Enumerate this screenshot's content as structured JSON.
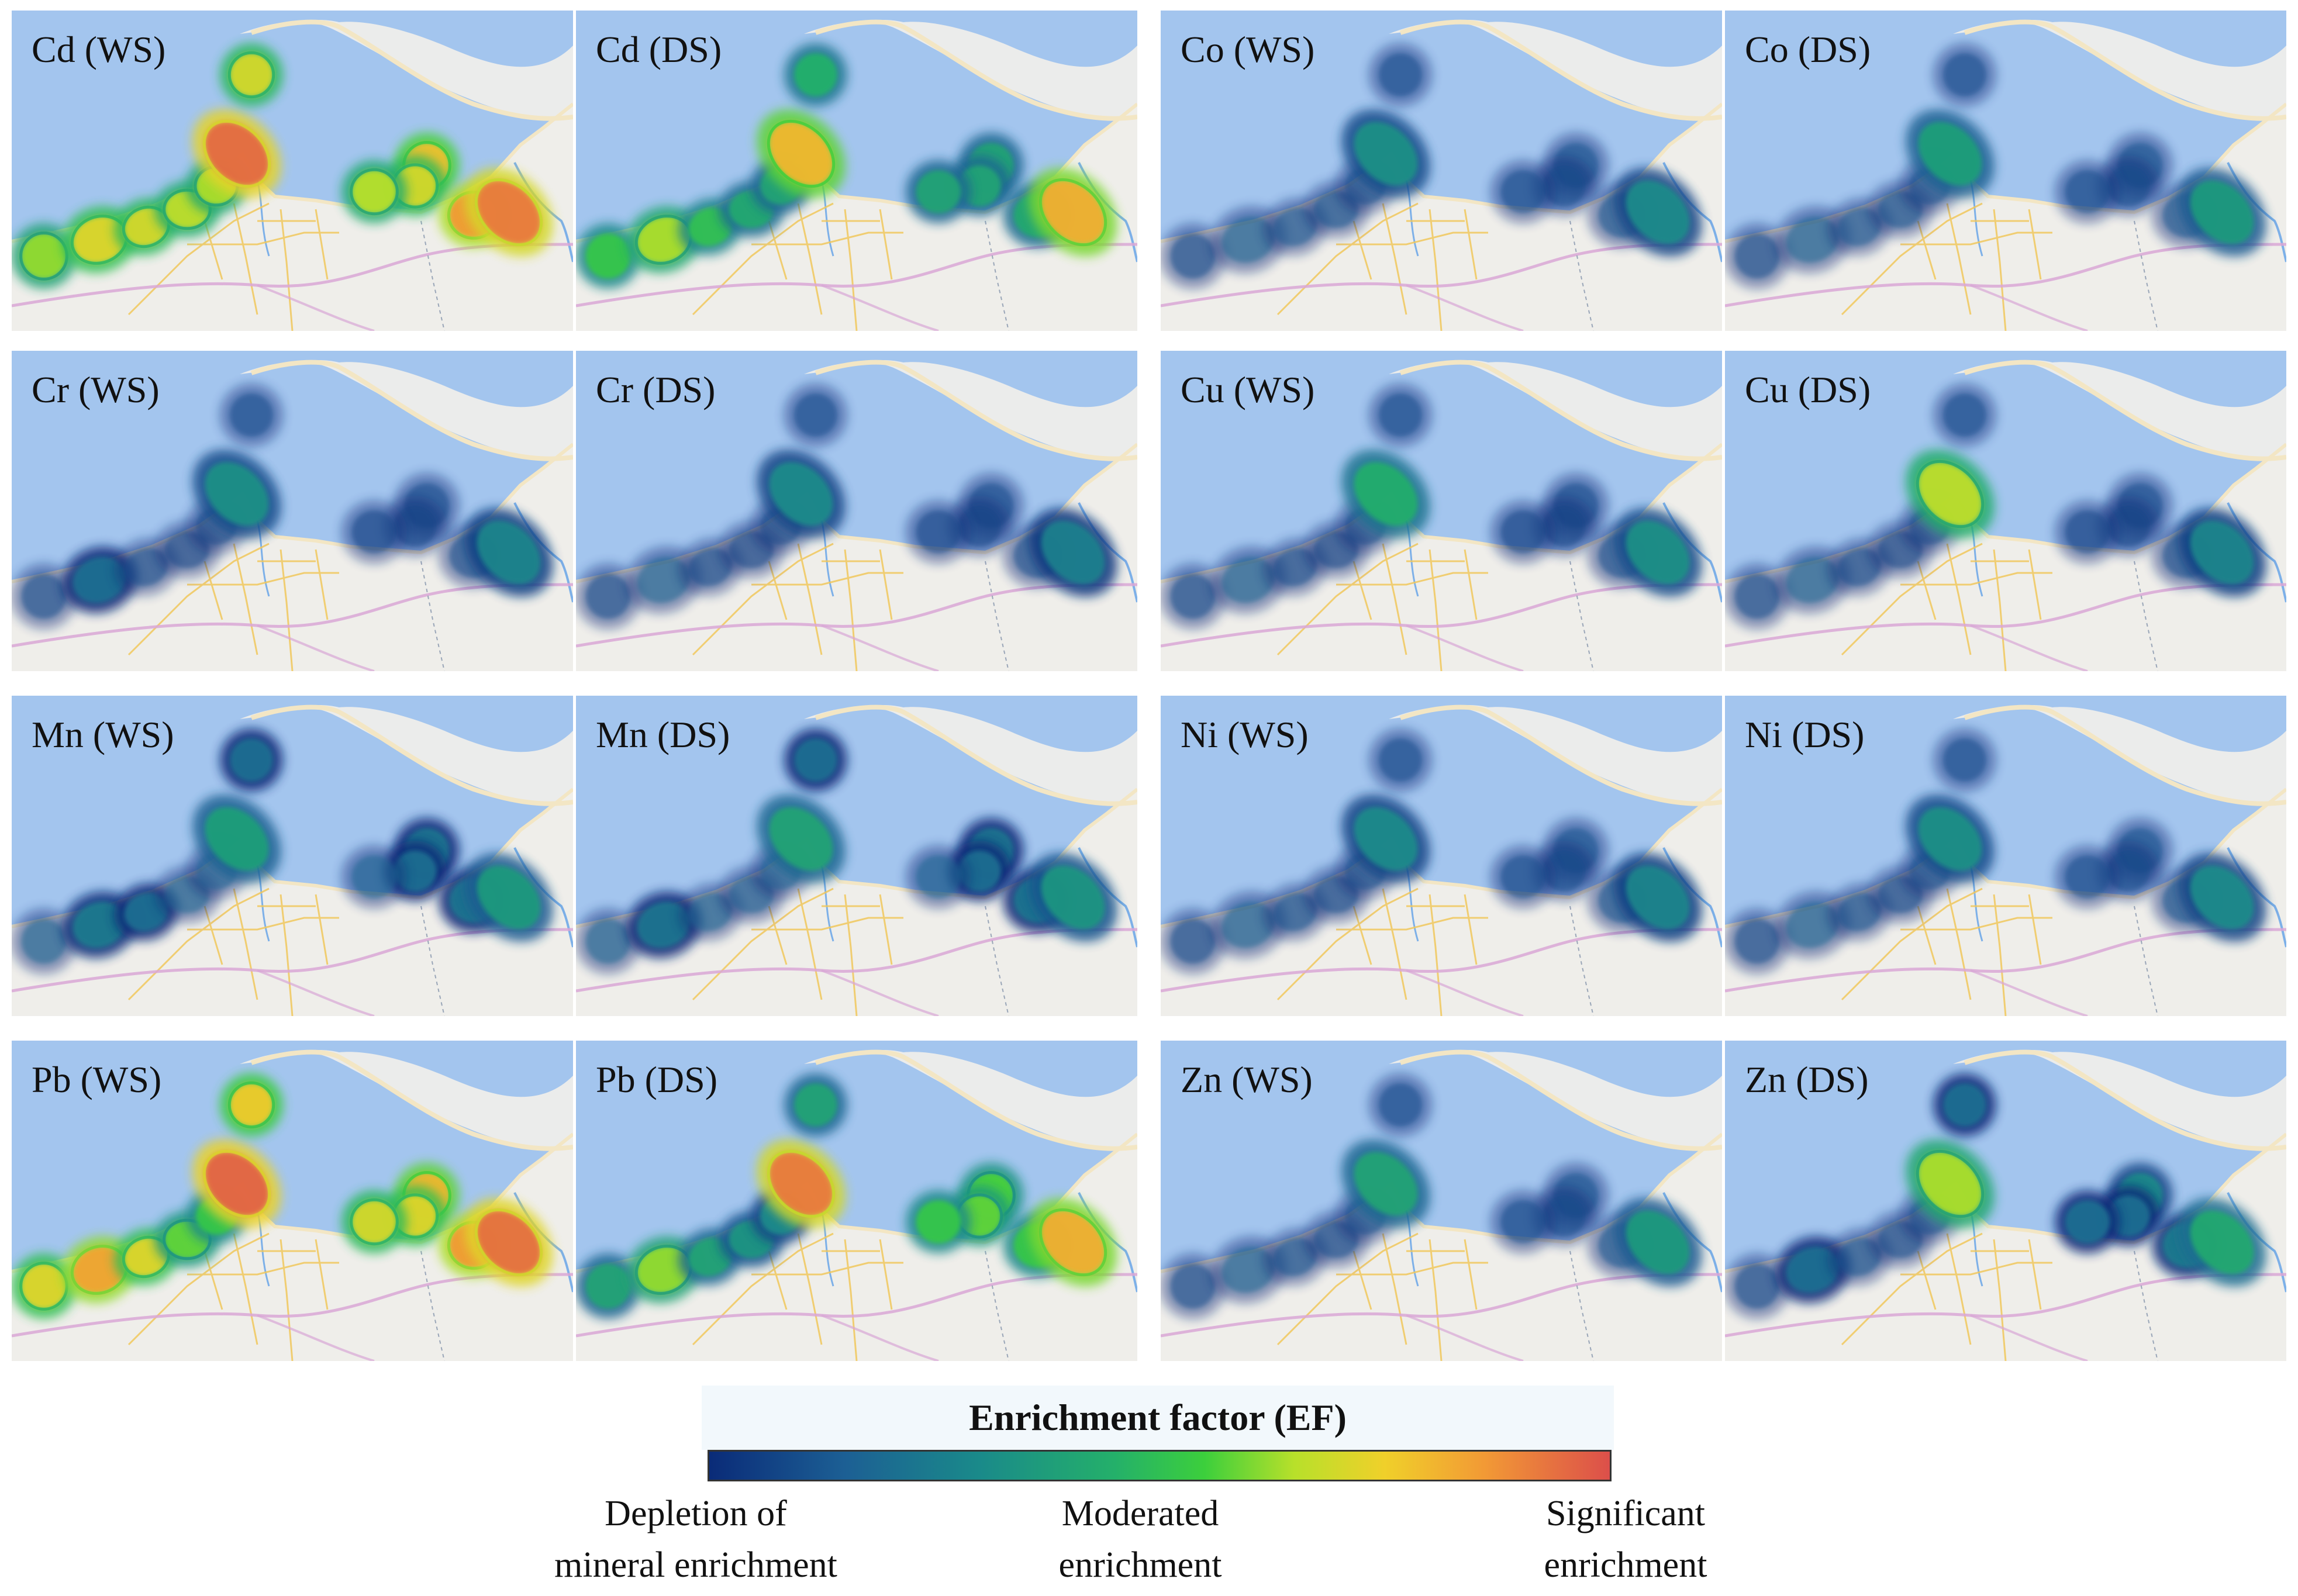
{
  "figure": {
    "panels": [
      {
        "label": "Cd (WS)",
        "element": "Cd",
        "season": "WS",
        "hotspots": [
          0.62,
          0.72,
          0.7,
          0.66,
          0.64,
          0.95,
          0.78,
          0.7,
          0.65,
          0.86,
          0.92,
          0.7
        ]
      },
      {
        "label": "Cd (DS)",
        "element": "Cd",
        "season": "DS",
        "hotspots": [
          0.52,
          0.64,
          0.5,
          0.42,
          0.4,
          0.8,
          0.4,
          0.4,
          0.4,
          0.42,
          0.82,
          0.45
        ]
      },
      {
        "label": "Co (WS)",
        "element": "Co",
        "season": "WS",
        "hotspots": [
          0.1,
          0.18,
          0.14,
          0.12,
          0.1,
          0.32,
          0.12,
          0.1,
          0.1,
          0.12,
          0.3,
          0.1
        ]
      },
      {
        "label": "Co (DS)",
        "element": "Co",
        "season": "DS",
        "hotspots": [
          0.1,
          0.18,
          0.14,
          0.12,
          0.1,
          0.38,
          0.12,
          0.1,
          0.1,
          0.12,
          0.36,
          0.1
        ]
      },
      {
        "label": "Cr (WS)",
        "element": "Cr",
        "season": "WS",
        "hotspots": [
          0.1,
          0.2,
          0.1,
          0.08,
          0.08,
          0.32,
          0.1,
          0.08,
          0.08,
          0.1,
          0.28,
          0.1
        ]
      },
      {
        "label": "Cr (DS)",
        "element": "Cr",
        "season": "DS",
        "hotspots": [
          0.1,
          0.18,
          0.1,
          0.08,
          0.08,
          0.3,
          0.1,
          0.08,
          0.08,
          0.1,
          0.26,
          0.1
        ]
      },
      {
        "label": "Cu (WS)",
        "element": "Cu",
        "season": "WS",
        "hotspots": [
          0.1,
          0.18,
          0.1,
          0.08,
          0.08,
          0.44,
          0.1,
          0.08,
          0.08,
          0.1,
          0.32,
          0.1
        ]
      },
      {
        "label": "Cu (DS)",
        "element": "Cu",
        "season": "DS",
        "hotspots": [
          0.1,
          0.18,
          0.1,
          0.08,
          0.08,
          0.66,
          0.1,
          0.08,
          0.08,
          0.1,
          0.28,
          0.1
        ]
      },
      {
        "label": "Mn (WS)",
        "element": "Mn",
        "season": "WS",
        "hotspots": [
          0.18,
          0.24,
          0.2,
          0.18,
          0.16,
          0.38,
          0.22,
          0.2,
          0.18,
          0.22,
          0.36,
          0.2
        ]
      },
      {
        "label": "Mn (DS)",
        "element": "Mn",
        "season": "DS",
        "hotspots": [
          0.18,
          0.22,
          0.18,
          0.16,
          0.16,
          0.4,
          0.22,
          0.2,
          0.18,
          0.22,
          0.34,
          0.2
        ]
      },
      {
        "label": "Ni (WS)",
        "element": "Ni",
        "season": "WS",
        "hotspots": [
          0.1,
          0.18,
          0.12,
          0.1,
          0.1,
          0.3,
          0.12,
          0.1,
          0.1,
          0.12,
          0.28,
          0.1
        ]
      },
      {
        "label": "Ni (DS)",
        "element": "Ni",
        "season": "DS",
        "hotspots": [
          0.1,
          0.18,
          0.12,
          0.1,
          0.1,
          0.32,
          0.12,
          0.1,
          0.1,
          0.12,
          0.3,
          0.1
        ]
      },
      {
        "label": "Pb (WS)",
        "element": "Pb",
        "season": "WS",
        "hotspots": [
          0.72,
          0.84,
          0.72,
          0.58,
          0.52,
          0.96,
          0.8,
          0.72,
          0.7,
          0.86,
          0.94,
          0.76
        ]
      },
      {
        "label": "Pb (DS)",
        "element": "Pb",
        "season": "DS",
        "hotspots": [
          0.4,
          0.62,
          0.4,
          0.34,
          0.3,
          0.92,
          0.56,
          0.58,
          0.52,
          0.52,
          0.82,
          0.4
        ]
      },
      {
        "label": "Zn (WS)",
        "element": "Zn",
        "season": "WS",
        "hotspots": [
          0.1,
          0.18,
          0.12,
          0.1,
          0.1,
          0.4,
          0.12,
          0.1,
          0.1,
          0.12,
          0.36,
          0.1
        ]
      },
      {
        "label": "Zn (DS)",
        "element": "Zn",
        "season": "DS",
        "hotspots": [
          0.1,
          0.2,
          0.12,
          0.1,
          0.1,
          0.64,
          0.3,
          0.2,
          0.2,
          0.24,
          0.42,
          0.2
        ]
      }
    ]
  },
  "legend": {
    "title": "Enrichment factor (EF)",
    "low_label": "Depletion of mineral enrichment",
    "mid_label": "Moderated enrichment",
    "high_label": "Significant enrichment",
    "low_line1": "Depletion of",
    "low_line2": "mineral enrichment",
    "mid_line1": "Moderated",
    "mid_line2": "enrichment",
    "high_line1": "Significant",
    "high_line2": "enrichment"
  },
  "colors": {
    "sea": "#a3c5ee",
    "land": "#efeeea",
    "coast": "#f3e6c4",
    "road": "#f1c85c",
    "highway": "#d9a7d6",
    "river": "#7db0e8"
  }
}
